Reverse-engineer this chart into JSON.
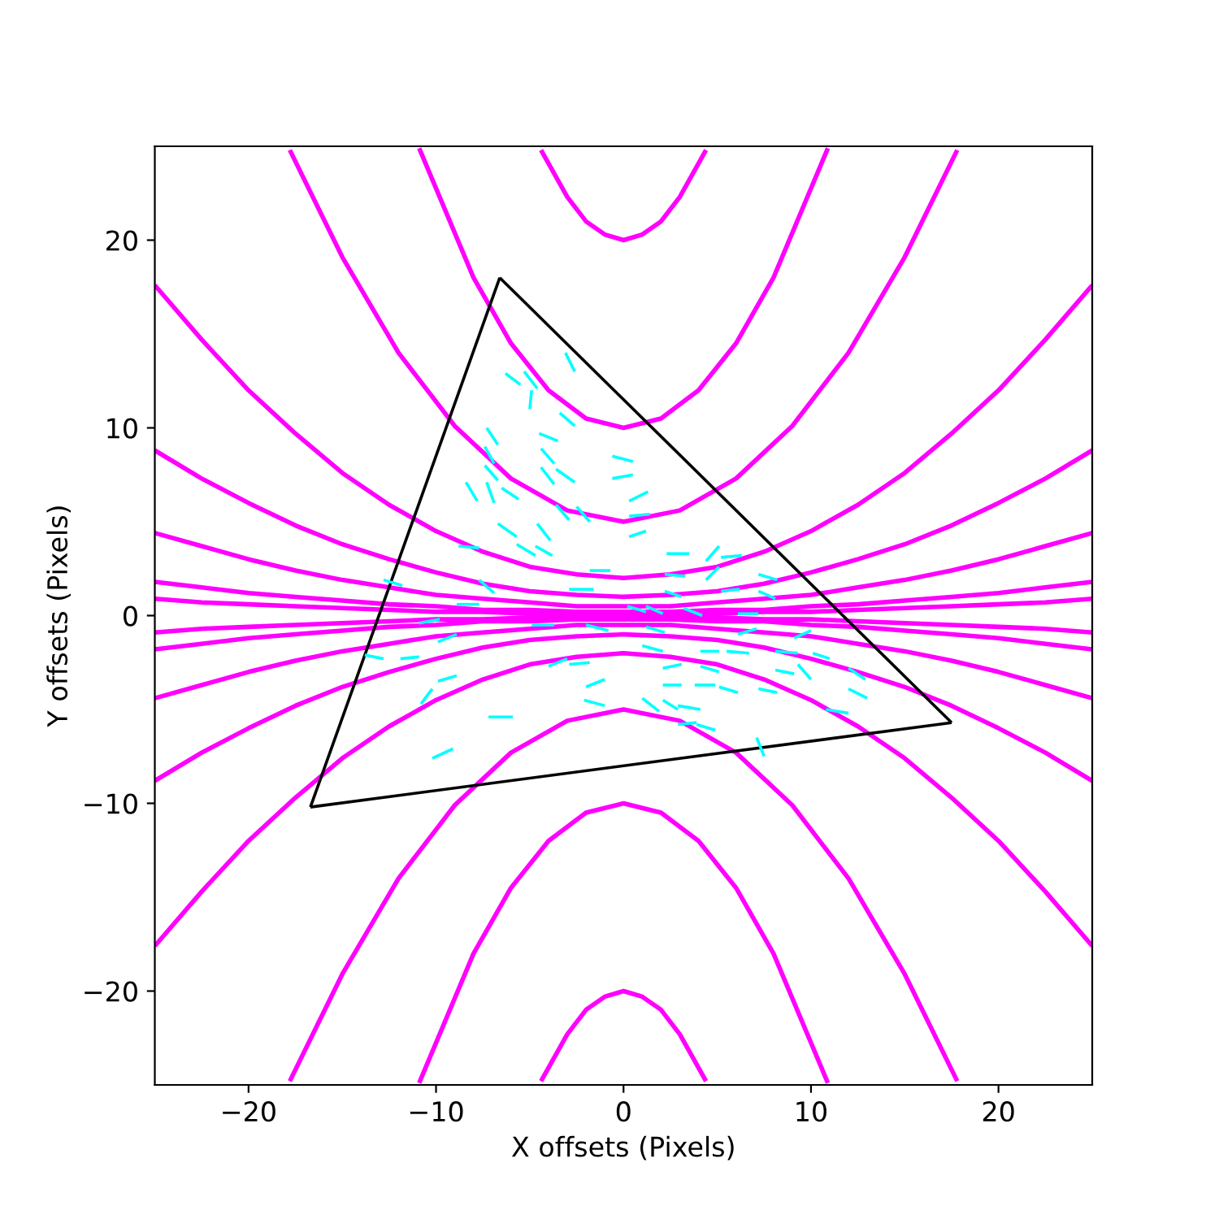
{
  "chart_data": {
    "type": "line",
    "xlabel": "X offsets (Pixels)",
    "ylabel": "Y offsets (Pixels)",
    "xlim": [
      -25,
      25
    ],
    "ylim": [
      -25,
      25
    ],
    "xticks": [
      {
        "value": -20,
        "label": "−20"
      },
      {
        "value": -10,
        "label": "−10"
      },
      0,
      10,
      20
    ],
    "yticks": [
      {
        "value": -20,
        "label": "−20"
      },
      {
        "value": -10,
        "label": "−10"
      },
      0,
      10,
      20
    ],
    "grid": false,
    "marker": "none",
    "line_style": "solid",
    "x": [
      -25,
      -22.5,
      -20,
      -17.5,
      -15,
      -12.5,
      -10,
      -7.5,
      -5,
      -2.5,
      0,
      2.5,
      5,
      7.5,
      10,
      12.5,
      15,
      17.5,
      20,
      22.5,
      25
    ],
    "series": [
      {
        "color": "#ff00ff",
        "x": [
          -4.4,
          -3,
          -2,
          -1,
          0,
          1,
          2,
          3,
          4.4
        ],
        "values": [
          24.8,
          22.3,
          21,
          20.3,
          20,
          20.3,
          21,
          22.3,
          24.8
        ]
      },
      {
        "color": "#ff00ff",
        "x": [
          -10.9,
          -8,
          -6,
          -4,
          -2,
          0,
          2,
          4,
          6,
          8,
          10.9
        ],
        "values": [
          24.9,
          18,
          14.5,
          12,
          10.5,
          10,
          10.5,
          12,
          14.5,
          18,
          24.9
        ]
      },
      {
        "color": "#ff00ff",
        "x": [
          -17.8,
          -15,
          -12,
          -9,
          -6,
          -3,
          0,
          3,
          6,
          9,
          12,
          15,
          17.8
        ],
        "values": [
          24.8,
          19.1,
          14,
          10.1,
          7.3,
          5.6,
          5,
          5.6,
          7.3,
          10.1,
          14,
          19.1,
          24.8
        ]
      },
      {
        "color": "#ff00ff",
        "values": [
          17.6,
          14.7,
          12,
          9.7,
          7.6,
          5.9,
          4.5,
          3.4,
          2.6,
          2.2,
          2,
          2.2,
          2.6,
          3.4,
          4.5,
          5.9,
          7.6,
          9.7,
          12,
          14.7,
          17.6
        ]
      },
      {
        "color": "#ff00ff",
        "values": [
          8.8,
          7.3,
          6,
          4.8,
          3.8,
          3,
          2.3,
          1.7,
          1.3,
          1.1,
          1,
          1.1,
          1.3,
          1.7,
          2.3,
          3,
          3.8,
          4.8,
          6,
          7.3,
          8.8
        ]
      },
      {
        "color": "#ff00ff",
        "values": [
          4.4,
          3.7,
          3,
          2.4,
          1.9,
          1.5,
          1.1,
          0.9,
          0.7,
          0.5,
          0.5,
          0.5,
          0.7,
          0.9,
          1.1,
          1.5,
          1.9,
          2.4,
          3,
          3.7,
          4.4
        ]
      },
      {
        "color": "#ff00ff",
        "values": [
          1.8,
          1.5,
          1.2,
          1,
          0.8,
          0.6,
          0.5,
          0.3,
          0.3,
          0.2,
          0.2,
          0.2,
          0.3,
          0.3,
          0.5,
          0.6,
          0.8,
          1,
          1.2,
          1.5,
          1.8
        ]
      },
      {
        "color": "#ff00ff",
        "values": [
          0.9,
          0.7,
          0.6,
          0.5,
          0.4,
          0.3,
          0.2,
          0.2,
          0.1,
          0.1,
          0.1,
          0.1,
          0.1,
          0.2,
          0.2,
          0.3,
          0.4,
          0.5,
          0.6,
          0.7,
          0.9
        ]
      },
      {
        "color": "#ff00ff",
        "values": [
          -0.9,
          -0.7,
          -0.6,
          -0.5,
          -0.4,
          -0.3,
          -0.2,
          -0.2,
          -0.1,
          -0.1,
          -0.1,
          -0.1,
          -0.1,
          -0.2,
          -0.2,
          -0.3,
          -0.4,
          -0.5,
          -0.6,
          -0.7,
          -0.9
        ]
      },
      {
        "color": "#ff00ff",
        "values": [
          -1.8,
          -1.5,
          -1.2,
          -1,
          -0.8,
          -0.6,
          -0.5,
          -0.3,
          -0.3,
          -0.2,
          -0.2,
          -0.2,
          -0.3,
          -0.3,
          -0.5,
          -0.6,
          -0.8,
          -1,
          -1.2,
          -1.5,
          -1.8
        ]
      },
      {
        "color": "#ff00ff",
        "values": [
          -4.4,
          -3.7,
          -3,
          -2.4,
          -1.9,
          -1.5,
          -1.1,
          -0.9,
          -0.7,
          -0.5,
          -0.5,
          -0.5,
          -0.7,
          -0.9,
          -1.1,
          -1.5,
          -1.9,
          -2.4,
          -3,
          -3.7,
          -4.4
        ]
      },
      {
        "color": "#ff00ff",
        "values": [
          -8.8,
          -7.3,
          -6,
          -4.8,
          -3.8,
          -3,
          -2.3,
          -1.7,
          -1.3,
          -1.1,
          -1,
          -1.1,
          -1.3,
          -1.7,
          -2.3,
          -3,
          -3.8,
          -4.8,
          -6,
          -7.3,
          -8.8
        ]
      },
      {
        "color": "#ff00ff",
        "values": [
          -17.6,
          -14.7,
          -12,
          -9.7,
          -7.6,
          -5.9,
          -4.5,
          -3.4,
          -2.6,
          -2.2,
          -2,
          -2.2,
          -2.6,
          -3.4,
          -4.5,
          -5.9,
          -7.6,
          -9.7,
          -12,
          -14.7,
          -17.6
        ]
      },
      {
        "color": "#ff00ff",
        "x": [
          -17.8,
          -15,
          -12,
          -9,
          -6,
          -3,
          0,
          3,
          6,
          9,
          12,
          15,
          17.8
        ],
        "values": [
          -24.8,
          -19.1,
          -14,
          -10.1,
          -7.3,
          -5.6,
          -5,
          -5.6,
          -7.3,
          -10.1,
          -14,
          -19.1,
          -24.8
        ]
      },
      {
        "color": "#ff00ff",
        "x": [
          -10.9,
          -8,
          -6,
          -4,
          -2,
          0,
          2,
          4,
          6,
          8,
          10.9
        ],
        "values": [
          -24.9,
          -18,
          -14.5,
          -12,
          -10.5,
          -10,
          -10.5,
          -12,
          -14.5,
          -18,
          -24.9
        ]
      },
      {
        "color": "#ff00ff",
        "x": [
          -4.4,
          -3,
          -2,
          -1,
          0,
          1,
          2,
          3,
          4.4
        ],
        "values": [
          -24.8,
          -22.3,
          -21,
          -20.3,
          -20,
          -20.3,
          -21,
          -22.3,
          -24.8
        ]
      },
      {
        "color": "#000000",
        "x": [
          -6.6,
          17.5
        ],
        "values": [
          18,
          -5.7
        ]
      },
      {
        "color": "#000000",
        "x": [
          -16.7,
          17.5
        ],
        "values": [
          -10.2,
          -5.7
        ]
      },
      {
        "color": "#000000",
        "x": [
          -16.7,
          -6.6
        ],
        "values": [
          -10.2,
          18
        ]
      },
      {
        "color": "#00ffff",
        "x": [
          -3.1,
          -2.6
        ],
        "values": [
          14.0,
          13.0
        ]
      },
      {
        "color": "#00ffff",
        "x": [
          -6.3,
          -5.5
        ],
        "values": [
          12.9,
          12.3
        ]
      },
      {
        "color": "#00ffff",
        "x": [
          -5.3,
          -4.6
        ],
        "values": [
          13.0,
          12.1
        ]
      },
      {
        "color": "#00ffff",
        "x": [
          -4.9,
          -5.0
        ],
        "values": [
          12.0,
          11.0
        ]
      },
      {
        "color": "#00ffff",
        "x": [
          -3.4,
          -2.6
        ],
        "values": [
          10.8,
          10.1
        ]
      },
      {
        "color": "#00ffff",
        "x": [
          -7.3,
          -6.7
        ],
        "values": [
          10.0,
          9.1
        ]
      },
      {
        "color": "#00ffff",
        "x": [
          -4.5,
          -3.5
        ],
        "values": [
          9.7,
          9.3
        ]
      },
      {
        "color": "#00ffff",
        "x": [
          -7.4,
          -6.9
        ],
        "values": [
          9.0,
          8.1
        ]
      },
      {
        "color": "#00ffff",
        "x": [
          -4.4,
          -3.7
        ],
        "values": [
          8.9,
          8.1
        ]
      },
      {
        "color": "#00ffff",
        "x": [
          -0.6,
          0.5
        ],
        "values": [
          8.5,
          8.2
        ]
      },
      {
        "color": "#00ffff",
        "x": [
          -7.4,
          -6.7
        ],
        "values": [
          8.0,
          7.2
        ]
      },
      {
        "color": "#00ffff",
        "x": [
          -4.4,
          -3.7
        ],
        "values": [
          7.9,
          7.0
        ]
      },
      {
        "color": "#00ffff",
        "x": [
          -3.6,
          -2.6
        ],
        "values": [
          7.8,
          7.1
        ]
      },
      {
        "color": "#00ffff",
        "x": [
          -0.6,
          0.5
        ],
        "values": [
          7.3,
          7.5
        ]
      },
      {
        "color": "#00ffff",
        "x": [
          -8.4,
          -7.8
        ],
        "values": [
          7.1,
          6.1
        ]
      },
      {
        "color": "#00ffff",
        "x": [
          -7.3,
          -6.9
        ],
        "values": [
          7.1,
          6.0
        ]
      },
      {
        "color": "#00ffff",
        "x": [
          -6.5,
          -5.6
        ],
        "values": [
          6.8,
          6.2
        ]
      },
      {
        "color": "#00ffff",
        "x": [
          0.3,
          1.3
        ],
        "values": [
          6.1,
          6.6
        ]
      },
      {
        "color": "#00ffff",
        "x": [
          -3.6,
          -2.9
        ],
        "values": [
          5.9,
          5.1
        ]
      },
      {
        "color": "#00ffff",
        "x": [
          -2.5,
          -1.8
        ],
        "values": [
          5.8,
          5.0
        ]
      },
      {
        "color": "#00ffff",
        "x": [
          0.3,
          1.4
        ],
        "values": [
          5.3,
          5.4
        ]
      },
      {
        "color": "#00ffff",
        "x": [
          -6.7,
          -5.7
        ],
        "values": [
          4.9,
          4.2
        ]
      },
      {
        "color": "#00ffff",
        "x": [
          -4.6,
          -3.9
        ],
        "values": [
          4.9,
          4.0
        ]
      },
      {
        "color": "#00ffff",
        "x": [
          0.3,
          1.2
        ],
        "values": [
          4.2,
          4.5
        ]
      },
      {
        "color": "#00ffff",
        "x": [
          -8.8,
          -7.7
        ],
        "values": [
          3.7,
          3.6
        ]
      },
      {
        "color": "#00ffff",
        "x": [
          -5.7,
          -4.7
        ],
        "values": [
          3.8,
          3.2
        ]
      },
      {
        "color": "#00ffff",
        "x": [
          -4.7,
          -3.8
        ],
        "values": [
          3.7,
          3.2
        ]
      },
      {
        "color": "#00ffff",
        "x": [
          -1.8,
          -0.7
        ],
        "values": [
          2.4,
          2.4
        ]
      },
      {
        "color": "#00ffff",
        "x": [
          -7.7,
          -6.9
        ],
        "values": [
          1.9,
          1.2
        ]
      },
      {
        "color": "#00ffff",
        "x": [
          -12.8,
          -11.8
        ],
        "values": [
          1.9,
          1.6
        ]
      },
      {
        "color": "#00ffff",
        "x": [
          -2.9,
          -1.6
        ],
        "values": [
          1.4,
          1.4
        ]
      },
      {
        "color": "#00ffff",
        "x": [
          -8.9,
          -7.7
        ],
        "values": [
          0.6,
          0.6
        ]
      },
      {
        "color": "#00ffff",
        "x": [
          0.2,
          1.2
        ],
        "values": [
          0.5,
          0.2
        ]
      },
      {
        "color": "#00ffff",
        "x": [
          2.3,
          3.5
        ],
        "values": [
          3.3,
          3.3
        ]
      },
      {
        "color": "#00ffff",
        "x": [
          4.4,
          5.1
        ],
        "values": [
          2.9,
          3.7
        ]
      },
      {
        "color": "#00ffff",
        "x": [
          5.2,
          6.3
        ],
        "values": [
          3.1,
          3.2
        ]
      },
      {
        "color": "#00ffff",
        "x": [
          2.2,
          3.3
        ],
        "values": [
          2.2,
          2.1
        ]
      },
      {
        "color": "#00ffff",
        "x": [
          7.2,
          8.2
        ],
        "values": [
          2.2,
          1.9
        ]
      },
      {
        "color": "#00ffff",
        "x": [
          4.4,
          5.1
        ],
        "values": [
          1.9,
          2.6
        ]
      },
      {
        "color": "#00ffff",
        "x": [
          2.2,
          3.1
        ],
        "values": [
          1.3,
          1.0
        ]
      },
      {
        "color": "#00ffff",
        "x": [
          5.2,
          6.2
        ],
        "values": [
          1.3,
          1.4
        ]
      },
      {
        "color": "#00ffff",
        "x": [
          7.2,
          8.1
        ],
        "values": [
          1.3,
          0.9
        ]
      },
      {
        "color": "#00ffff",
        "x": [
          3.2,
          4.2
        ],
        "values": [
          0.4,
          0.0
        ]
      },
      {
        "color": "#00ffff",
        "x": [
          6.1,
          7.2
        ],
        "values": [
          0.1,
          0.1
        ]
      },
      {
        "color": "#00ffff",
        "x": [
          1.2,
          2.1
        ],
        "values": [
          0.5,
          0.1
        ]
      },
      {
        "color": "#00ffff",
        "x": [
          -4.9,
          -3.7
        ],
        "values": [
          -0.5,
          -0.5
        ]
      },
      {
        "color": "#00ffff",
        "x": [
          -2.0,
          -0.8
        ],
        "values": [
          -0.5,
          -0.8
        ]
      },
      {
        "color": "#00ffff",
        "x": [
          -10.9,
          -9.8
        ],
        "values": [
          -0.4,
          -0.2
        ]
      },
      {
        "color": "#00ffff",
        "x": [
          1.2,
          2.2
        ],
        "values": [
          -0.6,
          -0.9
        ]
      },
      {
        "color": "#00ffff",
        "x": [
          6.1,
          7.1
        ],
        "values": [
          -1.0,
          -0.7
        ]
      },
      {
        "color": "#00ffff",
        "x": [
          9.1,
          10.0
        ],
        "values": [
          -1.2,
          -0.8
        ]
      },
      {
        "color": "#00ffff",
        "x": [
          -9.9,
          -8.9
        ],
        "values": [
          -1.4,
          -1.0
        ]
      },
      {
        "color": "#00ffff",
        "x": [
          1.0,
          2.1
        ],
        "values": [
          -1.6,
          -1.9
        ]
      },
      {
        "color": "#00ffff",
        "x": [
          4.1,
          5.1
        ],
        "values": [
          -1.9,
          -1.9
        ]
      },
      {
        "color": "#00ffff",
        "x": [
          5.5,
          6.7
        ],
        "values": [
          -1.9,
          -2.0
        ]
      },
      {
        "color": "#00ffff",
        "x": [
          8.1,
          9.3
        ],
        "values": [
          -1.9,
          -2.0
        ]
      },
      {
        "color": "#00ffff",
        "x": [
          10.1,
          11.0
        ],
        "values": [
          -2.0,
          -2.3
        ]
      },
      {
        "color": "#00ffff",
        "x": [
          -13.8,
          -12.8
        ],
        "values": [
          -2.1,
          -2.3
        ]
      },
      {
        "color": "#00ffff",
        "x": [
          -11.9,
          -10.9
        ],
        "values": [
          -2.3,
          -2.2
        ]
      },
      {
        "color": "#00ffff",
        "x": [
          -4.0,
          -3.0
        ],
        "values": [
          -2.7,
          -2.3
        ]
      },
      {
        "color": "#00ffff",
        "x": [
          -2.9,
          -1.8
        ],
        "values": [
          -2.6,
          -2.5
        ]
      },
      {
        "color": "#00ffff",
        "x": [
          2.1,
          3.1
        ],
        "values": [
          -2.8,
          -2.6
        ]
      },
      {
        "color": "#00ffff",
        "x": [
          4.1,
          5.1
        ],
        "values": [
          -2.7,
          -3.0
        ]
      },
      {
        "color": "#00ffff",
        "x": [
          8.1,
          9.1
        ],
        "values": [
          -2.9,
          -3.1
        ]
      },
      {
        "color": "#00ffff",
        "x": [
          9.3,
          10.0
        ],
        "values": [
          -2.6,
          -3.4
        ]
      },
      {
        "color": "#00ffff",
        "x": [
          12.0,
          12.9
        ],
        "values": [
          -2.8,
          -3.4
        ]
      },
      {
        "color": "#00ffff",
        "x": [
          -9.9,
          -8.9
        ],
        "values": [
          -3.5,
          -3.2
        ]
      },
      {
        "color": "#00ffff",
        "x": [
          -2.0,
          -1.0
        ],
        "values": [
          -3.8,
          -3.4
        ]
      },
      {
        "color": "#00ffff",
        "x": [
          2.1,
          3.1
        ],
        "values": [
          -3.7,
          -3.7
        ]
      },
      {
        "color": "#00ffff",
        "x": [
          3.8,
          4.9
        ],
        "values": [
          -3.7,
          -3.7
        ]
      },
      {
        "color": "#00ffff",
        "x": [
          5.1,
          6.1
        ],
        "values": [
          -3.8,
          -4.1
        ]
      },
      {
        "color": "#00ffff",
        "x": [
          7.2,
          8.2
        ],
        "values": [
          -3.9,
          -4.1
        ]
      },
      {
        "color": "#00ffff",
        "x": [
          12.0,
          13.0
        ],
        "values": [
          -3.9,
          -4.4
        ]
      },
      {
        "color": "#00ffff",
        "x": [
          -10.8,
          -10.2
        ],
        "values": [
          -4.7,
          -3.9
        ]
      },
      {
        "color": "#00ffff",
        "x": [
          -2.1,
          -1.0
        ],
        "values": [
          -4.5,
          -4.8
        ]
      },
      {
        "color": "#00ffff",
        "x": [
          1.0,
          1.9
        ],
        "values": [
          -4.4,
          -5.1
        ]
      },
      {
        "color": "#00ffff",
        "x": [
          2.1,
          2.9
        ],
        "values": [
          -4.5,
          -5.0
        ]
      },
      {
        "color": "#00ffff",
        "x": [
          2.9,
          4.1
        ],
        "values": [
          -4.8,
          -5.0
        ]
      },
      {
        "color": "#00ffff",
        "x": [
          10.8,
          12.0
        ],
        "values": [
          -5.0,
          -5.2
        ]
      },
      {
        "color": "#00ffff",
        "x": [
          -7.2,
          -5.9
        ],
        "values": [
          -5.4,
          -5.4
        ]
      },
      {
        "color": "#00ffff",
        "x": [
          2.9,
          3.9
        ],
        "values": [
          -5.8,
          -5.7
        ]
      },
      {
        "color": "#00ffff",
        "x": [
          3.9,
          4.9
        ],
        "values": [
          -5.8,
          -6.1
        ]
      },
      {
        "color": "#00ffff",
        "x": [
          7.1,
          7.5
        ],
        "values": [
          -6.5,
          -7.5
        ]
      },
      {
        "color": "#00ffff",
        "x": [
          -10.2,
          -9.1
        ],
        "values": [
          -7.6,
          -7.1
        ]
      }
    ]
  }
}
